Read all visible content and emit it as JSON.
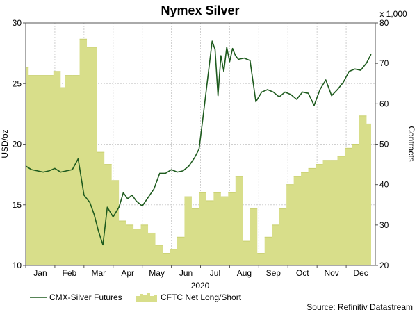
{
  "chart_data": {
    "type": "line+area",
    "title": "Nymex Silver",
    "year_label": "2020",
    "months": [
      "Jan",
      "Feb",
      "Mar",
      "Apr",
      "May",
      "Jun",
      "Jul",
      "Aug",
      "Sep",
      "Oct",
      "Nov",
      "Dec"
    ],
    "left_axis": {
      "label": "USD/oz",
      "min": 10,
      "max": 30,
      "ticks": [
        10,
        15,
        20,
        25,
        30
      ]
    },
    "right_axis": {
      "label": "Contracts",
      "multiplier_label": "x 1,000",
      "min": 20,
      "max": 80,
      "ticks": [
        20,
        30,
        40,
        50,
        60,
        70,
        80
      ]
    },
    "series": [
      {
        "name": "CMX-Silver Futures",
        "type": "line",
        "axis": "left",
        "color": "#1e5b1e",
        "x": [
          0,
          0.2,
          0.4,
          0.6,
          0.8,
          1.0,
          1.2,
          1.4,
          1.6,
          1.8,
          2.0,
          2.2,
          2.35,
          2.5,
          2.65,
          2.8,
          3.0,
          3.2,
          3.35,
          3.5,
          3.65,
          3.8,
          4.0,
          4.2,
          4.4,
          4.6,
          4.8,
          5.0,
          5.2,
          5.4,
          5.6,
          5.8,
          5.95,
          6.1,
          6.25,
          6.4,
          6.5,
          6.6,
          6.7,
          6.8,
          6.9,
          7.0,
          7.1,
          7.2,
          7.3,
          7.5,
          7.7,
          7.9,
          8.1,
          8.3,
          8.5,
          8.7,
          8.9,
          9.1,
          9.3,
          9.5,
          9.7,
          9.9,
          10.1,
          10.3,
          10.5,
          10.7,
          10.9,
          11.1,
          11.3,
          11.5,
          11.7,
          11.85
        ],
        "values": [
          18.2,
          17.9,
          17.8,
          17.7,
          17.8,
          18.0,
          17.7,
          17.8,
          17.9,
          18.8,
          15.8,
          15.2,
          14.2,
          12.8,
          11.7,
          14.8,
          14.0,
          14.8,
          16.0,
          15.5,
          15.8,
          15.3,
          14.9,
          15.6,
          16.3,
          17.6,
          17.6,
          17.9,
          17.7,
          17.8,
          18.2,
          18.9,
          19.6,
          22.5,
          25.5,
          28.5,
          27.8,
          24.0,
          27.3,
          26.0,
          28.0,
          26.8,
          27.9,
          27.3,
          27.0,
          27.1,
          26.9,
          23.5,
          24.3,
          24.5,
          24.3,
          23.9,
          24.3,
          24.1,
          23.7,
          24.3,
          24.2,
          23.2,
          24.5,
          25.3,
          24.0,
          24.5,
          25.1,
          26.0,
          26.2,
          26.1,
          26.7,
          27.4
        ]
      },
      {
        "name": "CFTC Net Long/Short",
        "type": "step-area",
        "axis": "right",
        "color": "#d8de8a",
        "x": [
          0,
          0.1,
          0.5,
          0.95,
          1.2,
          1.35,
          1.6,
          1.85,
          2.1,
          2.45,
          2.7,
          2.95,
          3.2,
          3.45,
          3.7,
          3.95,
          4.2,
          4.45,
          4.7,
          4.95,
          5.2,
          5.45,
          5.7,
          5.95,
          6.2,
          6.45,
          6.7,
          6.95,
          7.2,
          7.45,
          7.7,
          7.95,
          8.2,
          8.45,
          8.7,
          8.95,
          9.2,
          9.45,
          9.7,
          9.95,
          10.2,
          10.45,
          10.7,
          10.95,
          11.2,
          11.45,
          11.7,
          11.85
        ],
        "values": [
          69,
          67,
          67,
          68,
          64,
          67,
          67,
          76,
          74,
          48,
          45,
          41,
          31,
          30,
          29,
          30,
          28,
          25,
          23,
          24,
          27,
          37,
          34,
          38,
          36,
          38,
          37,
          38,
          42,
          26,
          34,
          23,
          27,
          30,
          34,
          40,
          42,
          43,
          44,
          45,
          46,
          46,
          47,
          49,
          50,
          57,
          55,
          55
        ]
      }
    ],
    "legend": [
      {
        "label": "CMX-Silver Futures"
      },
      {
        "label": "CFTC Net Long/Short"
      }
    ],
    "source": "Source: Refinitiv Datastream"
  }
}
